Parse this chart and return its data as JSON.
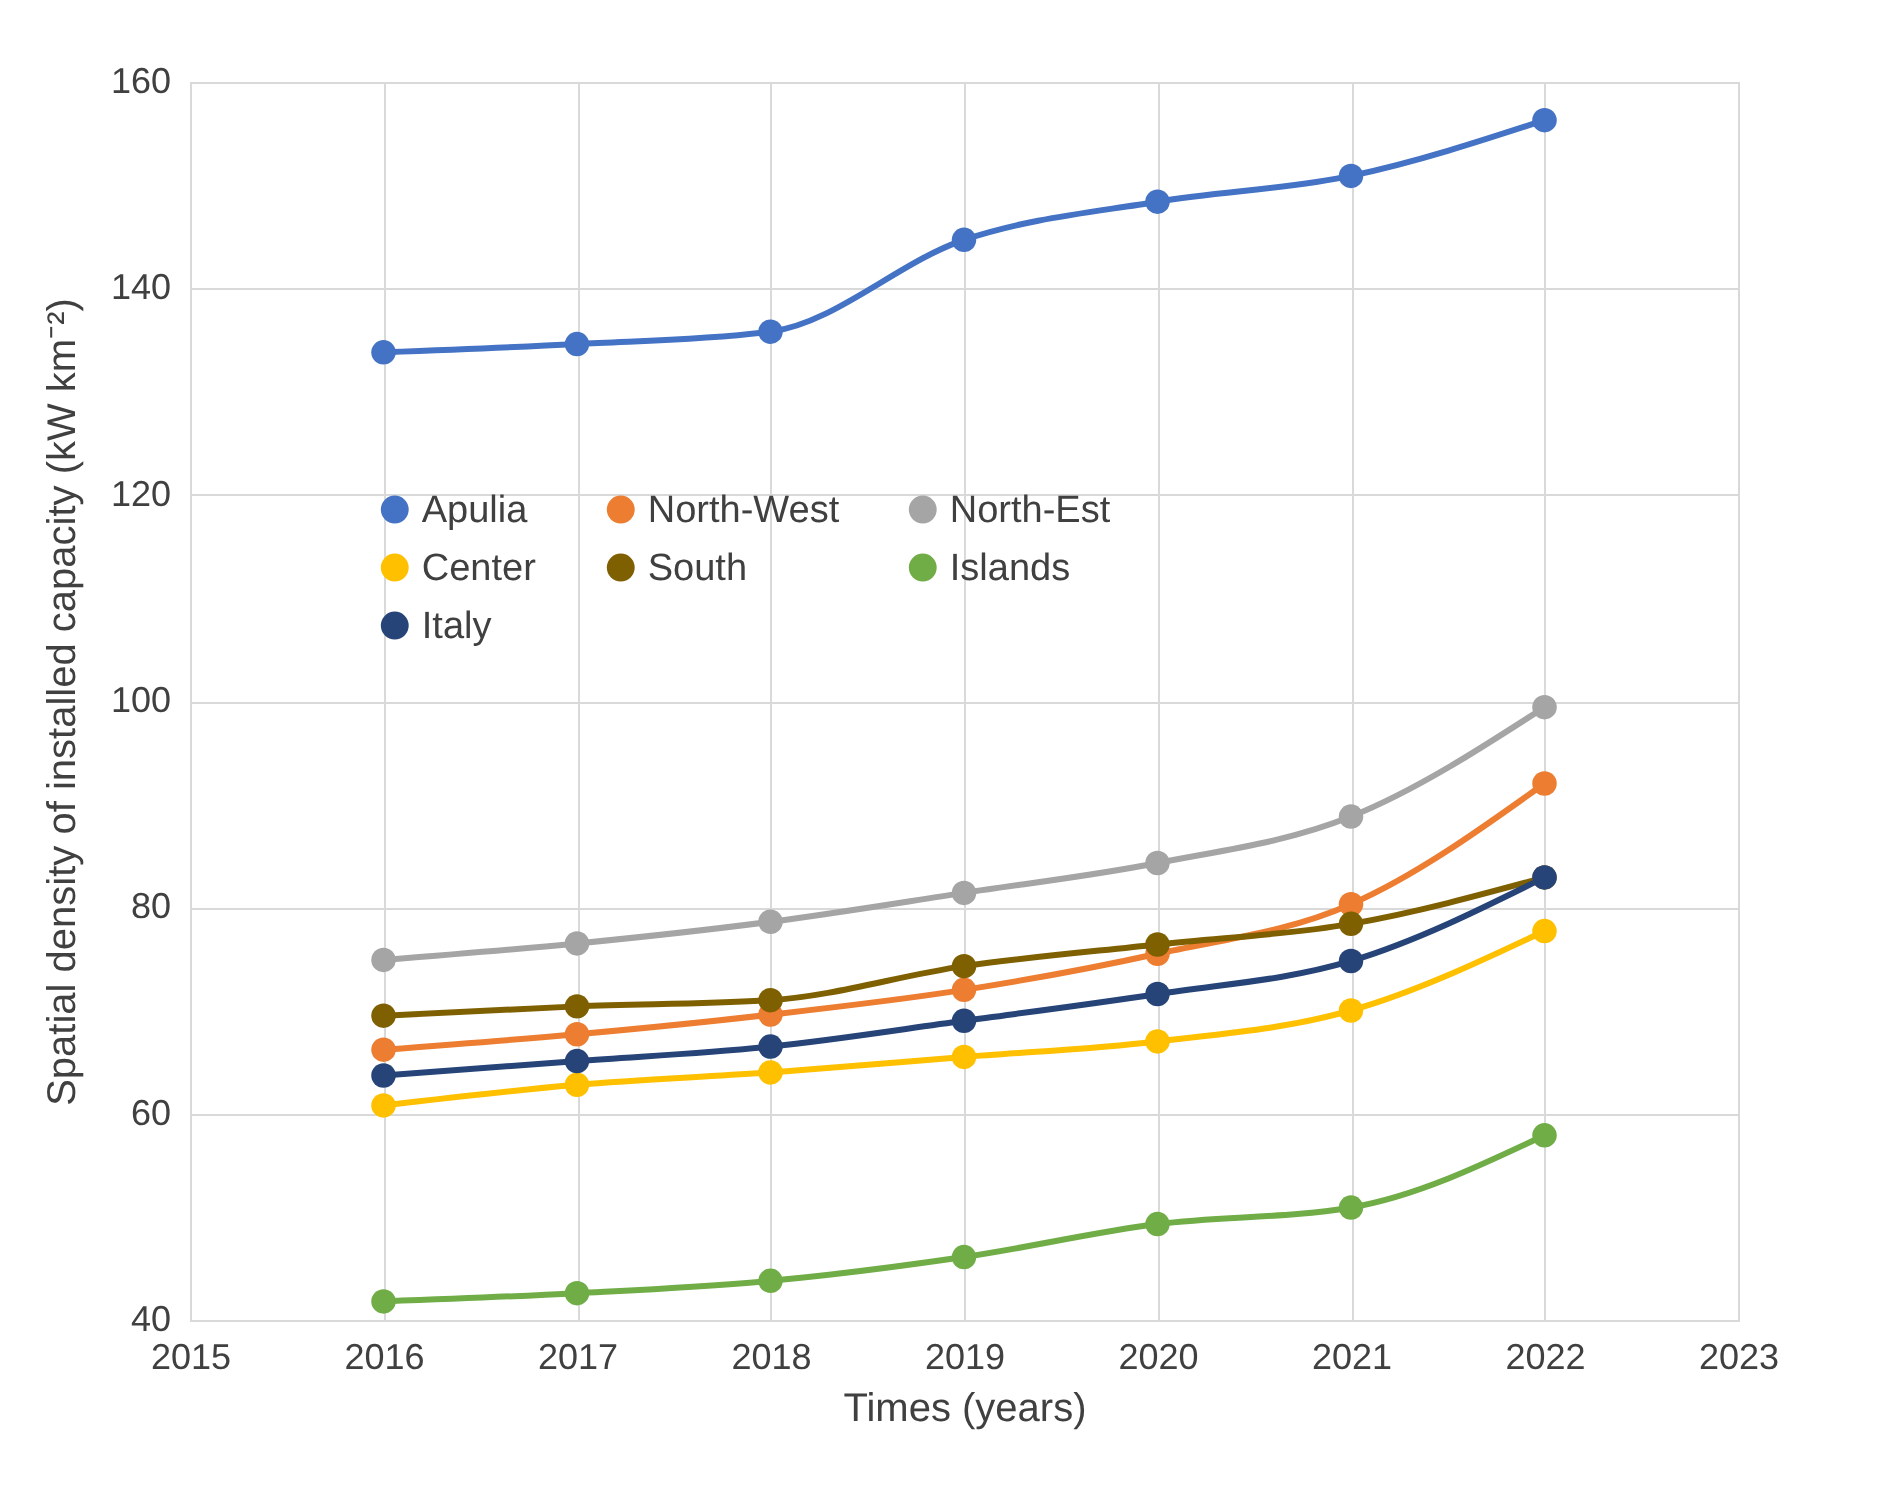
{
  "chart_data": {
    "type": "line",
    "xlabel": "Times (years)",
    "ylabel": "Spatial density of installed capacity (kW km⁻²)",
    "x": [
      2016,
      2017,
      2018,
      2019,
      2020,
      2021,
      2022
    ],
    "series": [
      {
        "name": "Apulia",
        "color": "#4472c4",
        "values": [
          133.8,
          134.6,
          135.8,
          144.7,
          148.4,
          150.9,
          156.3
        ]
      },
      {
        "name": "North-West",
        "color": "#ed7d31",
        "values": [
          66.2,
          67.7,
          69.6,
          72.0,
          75.5,
          80.3,
          92.0
        ]
      },
      {
        "name": "North-Est",
        "color": "#a5a5a5",
        "values": [
          74.9,
          76.5,
          78.6,
          81.4,
          84.3,
          88.8,
          99.4
        ]
      },
      {
        "name": "Center",
        "color": "#ffc000",
        "values": [
          60.8,
          62.8,
          64.0,
          65.5,
          67.0,
          70.0,
          77.7
        ]
      },
      {
        "name": "South",
        "color": "#7f6000",
        "values": [
          69.5,
          70.4,
          71.0,
          74.3,
          76.4,
          78.4,
          82.9
        ]
      },
      {
        "name": "Islands",
        "color": "#70ad47",
        "values": [
          41.8,
          42.6,
          43.8,
          46.1,
          49.3,
          50.9,
          57.9
        ]
      },
      {
        "name": "Italy",
        "color": "#264478",
        "values": [
          63.7,
          65.1,
          66.5,
          69.0,
          71.6,
          74.8,
          82.9
        ]
      }
    ],
    "xlim": [
      2015,
      2023
    ],
    "xticks": [
      2015,
      2016,
      2017,
      2018,
      2019,
      2020,
      2021,
      2022,
      2023
    ],
    "ylim": [
      40,
      160
    ],
    "yticks": [
      40,
      60,
      80,
      100,
      120,
      140,
      160
    ],
    "grid": true,
    "legend": "top left",
    "marker": "circle",
    "line_style": "solid"
  }
}
